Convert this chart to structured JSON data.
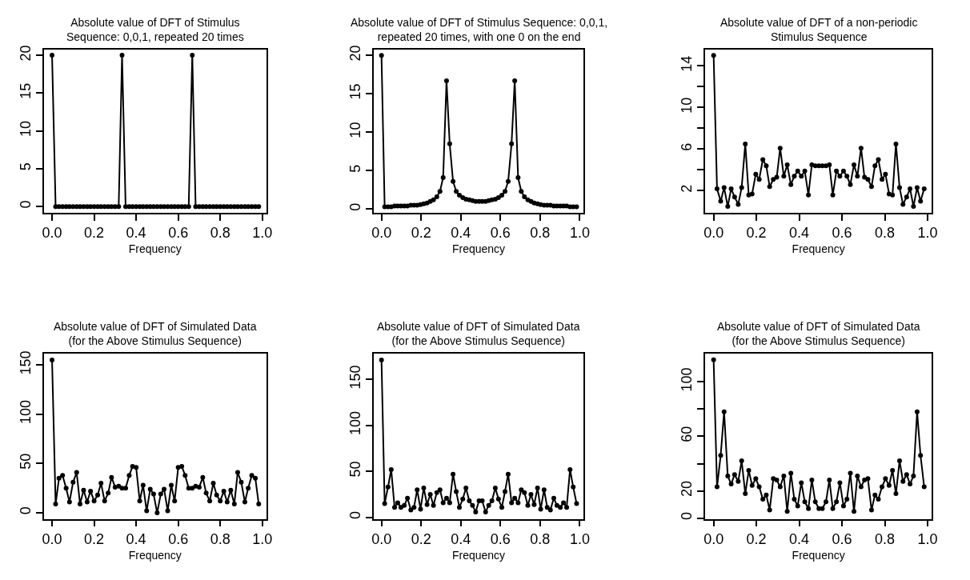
{
  "chart_data": [
    {
      "type": "line",
      "title": "Absolute value of DFT of Stimulus\nSequence: 0,0,1, repeated 20 times",
      "xlabel": "Frequency",
      "marker": "circle",
      "line_style": "solid",
      "xlim": [
        -0.04,
        1.02
      ],
      "ylim": [
        -0.8,
        20.8
      ],
      "xticks": [
        {
          "value": 0,
          "label": "0.0"
        },
        {
          "value": 0.2,
          "label": "0.2"
        },
        {
          "value": 0.4,
          "label": "0.4"
        },
        {
          "value": 0.6,
          "label": "0.6"
        },
        {
          "value": 0.8,
          "label": "0.8"
        },
        {
          "value": 1,
          "label": "1.0"
        }
      ],
      "yticks": [
        0,
        5,
        10,
        15,
        20
      ],
      "x": [
        0,
        0.017,
        0.033,
        0.05,
        0.067,
        0.083,
        0.1,
        0.117,
        0.133,
        0.15,
        0.167,
        0.183,
        0.2,
        0.217,
        0.233,
        0.25,
        0.267,
        0.283,
        0.3,
        0.317,
        0.333,
        0.35,
        0.367,
        0.383,
        0.4,
        0.417,
        0.433,
        0.45,
        0.467,
        0.483,
        0.5,
        0.517,
        0.533,
        0.55,
        0.567,
        0.583,
        0.6,
        0.617,
        0.633,
        0.65,
        0.667,
        0.683,
        0.7,
        0.717,
        0.733,
        0.75,
        0.767,
        0.783,
        0.8,
        0.817,
        0.833,
        0.85,
        0.867,
        0.883,
        0.9,
        0.917,
        0.933,
        0.95,
        0.967,
        0.983
      ],
      "series": [
        {
          "color": "#000000",
          "values": [
            20,
            0,
            0,
            0,
            0,
            0,
            0,
            0,
            0,
            0,
            0,
            0,
            0,
            0,
            0,
            0,
            0,
            0,
            0,
            0,
            20,
            0,
            0,
            0,
            0,
            0,
            0,
            0,
            0,
            0,
            0,
            0,
            0,
            0,
            0,
            0,
            0,
            0,
            0,
            0,
            20,
            0,
            0,
            0,
            0,
            0,
            0,
            0,
            0,
            0,
            0,
            0,
            0,
            0,
            0,
            0,
            0,
            0,
            0,
            0
          ]
        }
      ]
    },
    {
      "type": "line",
      "title": "Absolute value of DFT of Stimulus Sequence: 0,0,1,\nrepeated 20 times, with one 0 on the end",
      "xlabel": "Frequency",
      "marker": "circle",
      "line_style": "solid",
      "xlim": [
        -0.04,
        1.02
      ],
      "ylim": [
        -0.46,
        20.8
      ],
      "xticks": [
        {
          "value": 0,
          "label": "0.0"
        },
        {
          "value": 0.2,
          "label": "0.2"
        },
        {
          "value": 0.4,
          "label": "0.4"
        },
        {
          "value": 0.6,
          "label": "0.6"
        },
        {
          "value": 0.8,
          "label": "0.8"
        },
        {
          "value": 1,
          "label": "1.0"
        }
      ],
      "yticks": [
        0,
        5,
        10,
        15,
        20
      ],
      "x": [
        0,
        0.016,
        0.033,
        0.049,
        0.066,
        0.082,
        0.098,
        0.115,
        0.131,
        0.148,
        0.164,
        0.18,
        0.197,
        0.213,
        0.23,
        0.246,
        0.262,
        0.279,
        0.295,
        0.311,
        0.328,
        0.344,
        0.361,
        0.377,
        0.393,
        0.41,
        0.426,
        0.443,
        0.459,
        0.475,
        0.492,
        0.508,
        0.525,
        0.541,
        0.557,
        0.574,
        0.59,
        0.607,
        0.623,
        0.639,
        0.656,
        0.672,
        0.689,
        0.705,
        0.721,
        0.738,
        0.754,
        0.77,
        0.787,
        0.803,
        0.82,
        0.836,
        0.852,
        0.869,
        0.885,
        0.902,
        0.918,
        0.934,
        0.951,
        0.967,
        0.984
      ],
      "series": [
        {
          "color": "#000000",
          "values": [
            20,
            0.3,
            0.3,
            0.3,
            0.4,
            0.4,
            0.4,
            0.4,
            0.4,
            0.5,
            0.5,
            0.5,
            0.6,
            0.7,
            0.8,
            1.0,
            1.2,
            1.6,
            2.3,
            4.1,
            16.7,
            8.5,
            3.6,
            2.3,
            1.8,
            1.5,
            1.3,
            1.2,
            1.1,
            1.0,
            1.0,
            1.0,
            1.0,
            1.1,
            1.2,
            1.3,
            1.5,
            1.8,
            2.3,
            3.6,
            8.5,
            16.7,
            4.1,
            2.3,
            1.6,
            1.2,
            1.0,
            0.8,
            0.7,
            0.6,
            0.5,
            0.5,
            0.5,
            0.4,
            0.4,
            0.4,
            0.4,
            0.4,
            0.3,
            0.3,
            0.3
          ]
        }
      ]
    },
    {
      "type": "line",
      "title": "Absolute value of DFT of a non-periodic\nStimulus Sequence",
      "xlabel": "Frequency",
      "marker": "circle",
      "line_style": "solid",
      "xlim": [
        -0.04,
        1.02
      ],
      "ylim": [
        -0.1,
        15.6
      ],
      "xticks": [
        {
          "value": 0,
          "label": "0.0"
        },
        {
          "value": 0.2,
          "label": "0.2"
        },
        {
          "value": 0.4,
          "label": "0.4"
        },
        {
          "value": 0.6,
          "label": "0.6"
        },
        {
          "value": 0.8,
          "label": "0.8"
        },
        {
          "value": 1,
          "label": "1.0"
        }
      ],
      "yticks": [
        2,
        {
          "value": 4,
          "label": null
        },
        6,
        {
          "value": 8,
          "label": null
        },
        10,
        {
          "value": 12,
          "label": null
        },
        14
      ],
      "x": [
        0,
        0.016,
        0.033,
        0.049,
        0.066,
        0.082,
        0.098,
        0.115,
        0.131,
        0.148,
        0.164,
        0.18,
        0.197,
        0.213,
        0.23,
        0.246,
        0.262,
        0.279,
        0.295,
        0.311,
        0.328,
        0.344,
        0.361,
        0.377,
        0.393,
        0.41,
        0.426,
        0.443,
        0.459,
        0.475,
        0.492,
        0.508,
        0.525,
        0.541,
        0.557,
        0.574,
        0.59,
        0.607,
        0.623,
        0.639,
        0.656,
        0.672,
        0.689,
        0.705,
        0.721,
        0.738,
        0.754,
        0.77,
        0.787,
        0.803,
        0.82,
        0.836,
        0.852,
        0.869,
        0.885,
        0.902,
        0.918,
        0.934,
        0.951,
        0.967,
        0.984
      ],
      "series": [
        {
          "color": "#000000",
          "values": [
            15,
            2.2,
            1.0,
            2.3,
            0.5,
            2.2,
            1.4,
            0.7,
            2.3,
            6.5,
            1.6,
            1.7,
            3.6,
            3.1,
            5.0,
            4.4,
            2.4,
            3.1,
            3.3,
            6.1,
            3.4,
            4.5,
            2.6,
            3.4,
            3.9,
            3.4,
            3.9,
            1.6,
            4.5,
            4.4,
            4.4,
            4.4,
            4.4,
            4.5,
            1.6,
            3.9,
            3.4,
            3.9,
            3.4,
            2.6,
            4.5,
            3.4,
            6.1,
            3.3,
            3.1,
            2.4,
            4.4,
            5.0,
            3.1,
            3.6,
            1.7,
            1.6,
            6.5,
            2.3,
            0.7,
            1.4,
            2.2,
            0.5,
            2.3,
            1.0,
            2.2
          ]
        }
      ]
    },
    {
      "type": "line",
      "title": "Absolute value of DFT of Simulated Data\n(for the Above Stimulus Sequence)",
      "xlabel": "Frequency",
      "marker": "circle",
      "line_style": "solid",
      "xlim": [
        -0.04,
        1.02
      ],
      "ylim": [
        -6.2,
        161.2
      ],
      "xticks": [
        {
          "value": 0,
          "label": "0.0"
        },
        {
          "value": 0.2,
          "label": "0.2"
        },
        {
          "value": 0.4,
          "label": "0.4"
        },
        {
          "value": 0.6,
          "label": "0.6"
        },
        {
          "value": 0.8,
          "label": "0.8"
        },
        {
          "value": 1,
          "label": "1.0"
        }
      ],
      "yticks": [
        0,
        50,
        100,
        150
      ],
      "x": [
        0,
        0.017,
        0.033,
        0.05,
        0.067,
        0.083,
        0.1,
        0.117,
        0.133,
        0.15,
        0.167,
        0.183,
        0.2,
        0.217,
        0.233,
        0.25,
        0.267,
        0.283,
        0.3,
        0.317,
        0.333,
        0.35,
        0.367,
        0.383,
        0.4,
        0.417,
        0.433,
        0.45,
        0.467,
        0.483,
        0.5,
        0.517,
        0.533,
        0.55,
        0.567,
        0.583,
        0.6,
        0.617,
        0.633,
        0.65,
        0.667,
        0.683,
        0.7,
        0.717,
        0.733,
        0.75,
        0.767,
        0.783,
        0.8,
        0.817,
        0.833,
        0.85,
        0.867,
        0.883,
        0.9,
        0.917,
        0.933,
        0.95,
        0.967,
        0.983
      ],
      "series": [
        {
          "color": "#000000",
          "values": [
            155,
            9,
            35,
            38,
            25,
            11,
            31,
            41,
            9,
            23,
            11,
            22,
            12,
            18,
            30,
            12,
            20,
            36,
            26,
            27,
            25,
            25,
            38,
            47,
            46,
            12,
            28,
            2,
            24,
            19,
            0,
            19,
            24,
            2,
            28,
            12,
            46,
            47,
            38,
            25,
            25,
            27,
            26,
            36,
            20,
            12,
            30,
            18,
            12,
            22,
            11,
            23,
            9,
            41,
            31,
            11,
            25,
            38,
            35,
            9
          ]
        }
      ]
    },
    {
      "type": "line",
      "title": "Absolute value of DFT of Simulated Data\n(for the Above Stimulus Sequence)",
      "xlabel": "Frequency",
      "marker": "circle",
      "line_style": "solid",
      "xlim": [
        -0.04,
        1.02
      ],
      "ylim": [
        -1.6,
        177.7
      ],
      "xticks": [
        {
          "value": 0,
          "label": "0.0"
        },
        {
          "value": 0.2,
          "label": "0.2"
        },
        {
          "value": 0.4,
          "label": "0.4"
        },
        {
          "value": 0.6,
          "label": "0.6"
        },
        {
          "value": 0.8,
          "label": "0.8"
        },
        {
          "value": 1,
          "label": "1.0"
        }
      ],
      "yticks": [
        0,
        50,
        100,
        150
      ],
      "x": [
        0,
        0.016,
        0.033,
        0.049,
        0.066,
        0.082,
        0.098,
        0.115,
        0.131,
        0.148,
        0.164,
        0.18,
        0.197,
        0.213,
        0.23,
        0.246,
        0.262,
        0.279,
        0.295,
        0.311,
        0.328,
        0.344,
        0.361,
        0.377,
        0.393,
        0.41,
        0.426,
        0.443,
        0.459,
        0.475,
        0.492,
        0.508,
        0.525,
        0.541,
        0.557,
        0.574,
        0.59,
        0.607,
        0.623,
        0.639,
        0.656,
        0.672,
        0.689,
        0.705,
        0.721,
        0.738,
        0.754,
        0.77,
        0.787,
        0.803,
        0.82,
        0.836,
        0.852,
        0.869,
        0.885,
        0.902,
        0.918,
        0.934,
        0.951,
        0.967,
        0.984
      ],
      "series": [
        {
          "color": "#000000",
          "values": [
            171,
            15,
            33,
            52,
            11,
            16,
            11,
            13,
            21,
            8,
            11,
            30,
            9,
            32,
            14,
            25,
            13,
            27,
            30,
            16,
            21,
            16,
            47,
            28,
            11,
            20,
            32,
            18,
            13,
            6,
            18,
            18,
            6,
            13,
            18,
            32,
            20,
            11,
            28,
            47,
            16,
            21,
            16,
            30,
            27,
            13,
            25,
            14,
            32,
            9,
            30,
            11,
            8,
            21,
            13,
            11,
            16,
            11,
            52,
            33,
            15
          ]
        }
      ]
    },
    {
      "type": "line",
      "title": "Absolute value of DFT of Simulated Data\n(for the Above Stimulus Sequence)",
      "xlabel": "Frequency",
      "marker": "circle",
      "line_style": "solid",
      "xlim": [
        -0.04,
        1.02
      ],
      "ylim": [
        -0.5,
        120.4
      ],
      "xticks": [
        {
          "value": 0,
          "label": "0.0"
        },
        {
          "value": 0.2,
          "label": "0.2"
        },
        {
          "value": 0.4,
          "label": "0.4"
        },
        {
          "value": 0.6,
          "label": "0.6"
        },
        {
          "value": 0.8,
          "label": "0.8"
        },
        {
          "value": 1,
          "label": "1.0"
        }
      ],
      "yticks": [
        0,
        20,
        {
          "value": 40,
          "label": null
        },
        60,
        {
          "value": 80,
          "label": null
        },
        100
      ],
      "x": [
        0,
        0.016,
        0.033,
        0.049,
        0.066,
        0.082,
        0.098,
        0.115,
        0.131,
        0.148,
        0.164,
        0.18,
        0.197,
        0.213,
        0.23,
        0.246,
        0.262,
        0.279,
        0.295,
        0.311,
        0.328,
        0.344,
        0.361,
        0.377,
        0.393,
        0.41,
        0.426,
        0.443,
        0.459,
        0.475,
        0.492,
        0.508,
        0.525,
        0.541,
        0.557,
        0.574,
        0.59,
        0.607,
        0.623,
        0.639,
        0.656,
        0.672,
        0.689,
        0.705,
        0.721,
        0.738,
        0.754,
        0.77,
        0.787,
        0.803,
        0.82,
        0.836,
        0.852,
        0.869,
        0.885,
        0.902,
        0.918,
        0.934,
        0.951,
        0.967,
        0.984
      ],
      "series": [
        {
          "color": "#000000",
          "values": [
            116,
            23,
            46,
            78,
            31,
            25,
            32,
            27,
            42,
            18,
            35,
            24,
            29,
            23,
            14,
            17,
            6,
            29,
            28,
            23,
            31,
            5,
            33,
            14,
            9,
            26,
            12,
            7,
            28,
            12,
            7,
            7,
            12,
            28,
            7,
            12,
            26,
            9,
            14,
            33,
            5,
            31,
            23,
            28,
            29,
            6,
            17,
            14,
            23,
            29,
            24,
            35,
            18,
            42,
            27,
            32,
            25,
            31,
            78,
            46,
            23
          ]
        }
      ]
    }
  ]
}
